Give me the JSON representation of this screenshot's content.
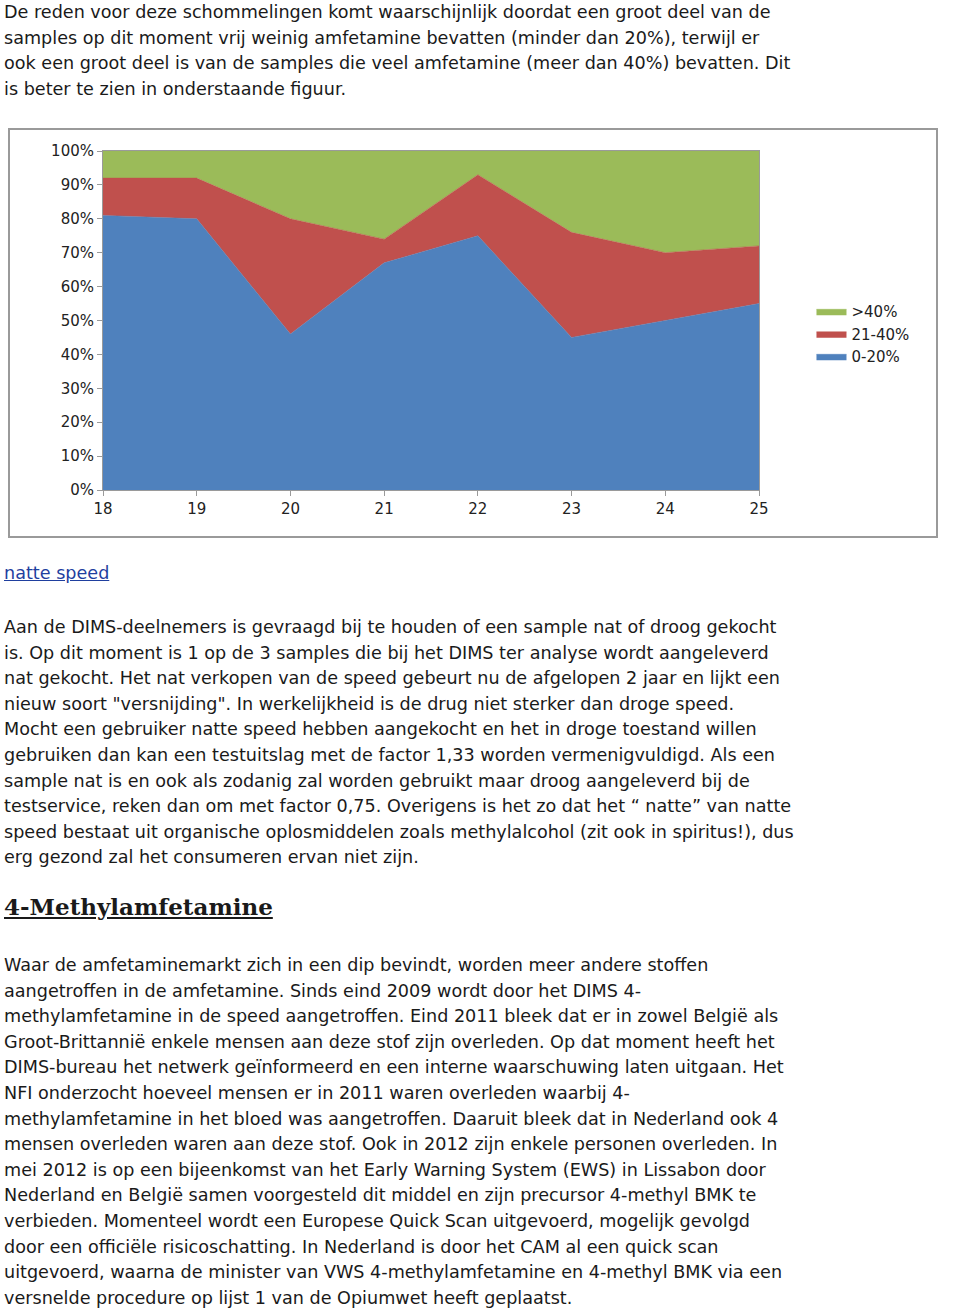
{
  "document": {
    "intro": [
      "De reden voor deze schommelingen komt waarschijnlijk doordat een groot deel van de",
      "samples op dit moment vrij weinig amfetamine bevatten (minder dan 20%), terwijl er",
      "ook een groot deel is van de samples die veel amfetamine (meer dan 40%) bevatten. Dit",
      "is beter te zien in onderstaande figuur."
    ],
    "link": "natte speed",
    "paragraph": [
      "Aan de DIMS-deelnemers is gevraagd bij te houden of een sample nat of droog gekocht",
      "is. Op dit moment is 1 op de 3 samples die bij het DIMS ter analyse wordt aangeleverd",
      "nat gekocht. Het nat verkopen van de speed gebeurt nu de afgelopen 2 jaar en lijkt een",
      "nieuw soort \"versnijding\". In werkelijkheid is de drug niet sterker dan droge speed.",
      "Mocht een gebruiker natte speed hebben aangekocht en het in droge toestand willen",
      "gebruiken dan kan een testuitslag met de factor 1,33 worden vermenigvuldigd. Als een",
      "sample nat is en ook als zodanig zal worden gebruikt maar droog aangeleverd bij de",
      "testservice, reken dan om met factor 0,75. Overigens is het zo dat het “ natte” van natte",
      "speed bestaat uit organische oplosmiddelen zoals methylalcohol (zit ook in spiritus!), dus",
      "erg gezond zal het consumeren ervan niet zijn."
    ],
    "heading": "4-Methylamfetamine",
    "section": [
      "Waar de amfetaminemarkt zich in een dip bevindt, worden meer andere stoffen",
      "aangetroffen in de amfetamine. Sinds eind 2009 wordt door het DIMS 4-",
      "methylamfetamine in de speed aangetroffen. Eind 2011 bleek dat er in zowel België als",
      "Groot-Brittannië enkele mensen aan deze stof zijn overleden. Op dat moment heeft het",
      "DIMS-bureau het netwerk geïnformeerd en een interne waarschuwing laten uitgaan. Het",
      "NFI onderzocht hoeveel mensen er in 2011 waren overleden waarbij 4-",
      "methylamfetamine in het bloed was aangetroffen. Daaruit bleek dat in Nederland ook 4",
      "mensen overleden waren aan deze stof. Ook in 2012 zijn enkele personen overleden. In",
      "mei 2012 is op een bijeenkomst van het Early Warning System (EWS) in Lissabon door",
      "Nederland en België samen voorgesteld dit middel en zijn precursor 4-methyl BMK te",
      "verbieden. Momenteel wordt een Europese Quick Scan uitgevoerd, mogelijk gevolgd",
      "door een officiële risicoschatting. In Nederland is door het CAM al een quick scan",
      "uitgevoerd, waarna de minister van VWS 4-methylamfetamine en 4-methyl BMK via een",
      "versnelde procedure op lijst 1 van de Opiumwet heeft geplaatst."
    ]
  },
  "chart_data": {
    "type": "area",
    "stacked": true,
    "x": [
      18,
      19,
      20,
      21,
      22,
      23,
      24,
      25
    ],
    "xlim": [
      18,
      25
    ],
    "xticks": [
      18,
      19,
      20,
      21,
      22,
      23,
      24,
      25
    ],
    "ylim": [
      0,
      100
    ],
    "yticks": [
      {
        "value": 0,
        "label": "0%"
      },
      {
        "value": 10,
        "label": "10%"
      },
      {
        "value": 20,
        "label": "20%"
      },
      {
        "value": 30,
        "label": "30%"
      },
      {
        "value": 40,
        "label": "40%"
      },
      {
        "value": 50,
        "label": "50%"
      },
      {
        "value": 60,
        "label": "60%"
      },
      {
        "value": 70,
        "label": "70%"
      },
      {
        "value": 80,
        "label": "80%"
      },
      {
        "value": 90,
        "label": "90%"
      },
      {
        "value": 100,
        "label": "100%"
      }
    ],
    "grid": false,
    "legend": "right",
    "series": [
      {
        "name": "0-20%",
        "color": "#4f81bd",
        "values": [
          81,
          80,
          46,
          67,
          75,
          45,
          50,
          55
        ]
      },
      {
        "name": "21-40%",
        "color": "#c0504d",
        "values": [
          11,
          12,
          34,
          7,
          18,
          31,
          20,
          17
        ]
      },
      {
        "name": ">40%",
        "color": "#9bbb59",
        "values": [
          8,
          8,
          20,
          26,
          7,
          24,
          30,
          28
        ]
      }
    ]
  }
}
